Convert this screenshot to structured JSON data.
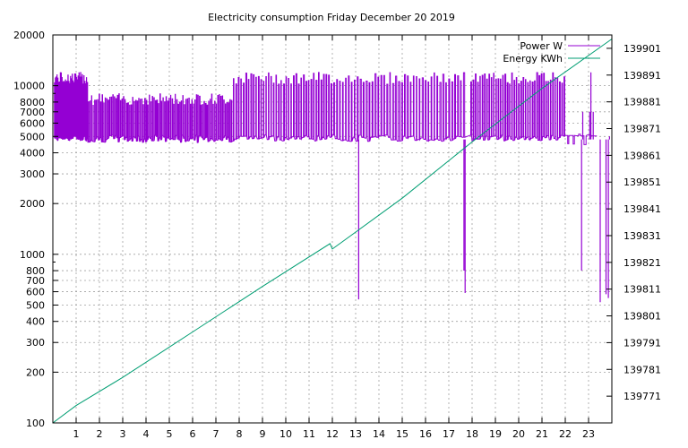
{
  "chart_data": {
    "type": "line",
    "title": "Electricity consumption Friday December 20 2019",
    "xlabel": "",
    "ylabel": "",
    "grid": true,
    "legend_position": "top-right",
    "x_range": [
      0,
      24
    ],
    "x_ticks": [
      1,
      2,
      3,
      4,
      5,
      6,
      7,
      8,
      9,
      10,
      11,
      12,
      13,
      14,
      15,
      16,
      17,
      18,
      19,
      20,
      21,
      22,
      23
    ],
    "y_axis": {
      "scale": "log",
      "range": [
        100,
        20000
      ],
      "ticks": [
        100,
        200,
        300,
        400,
        500,
        600,
        700,
        800,
        1000,
        2000,
        3000,
        4000,
        5000,
        6000,
        7000,
        8000,
        10000,
        20000
      ]
    },
    "y2_axis": {
      "scale": "linear",
      "range": [
        139761,
        139906
      ],
      "ticks": [
        139771,
        139781,
        139791,
        139801,
        139811,
        139821,
        139831,
        139841,
        139851,
        139861,
        139871,
        139881,
        139891,
        139901
      ]
    },
    "series": [
      {
        "name": "Power W",
        "axis": "y",
        "color": "#9400d3",
        "baseline": 4800,
        "peak": 12000,
        "segments": [
          {
            "from": 0.05,
            "to": 1.5,
            "low": 4700,
            "high": 12000,
            "count": 40
          },
          {
            "from": 1.5,
            "to": 7.7,
            "low": 4600,
            "high": 9000,
            "count": 95
          },
          {
            "from": 7.7,
            "to": 12.0,
            "low": 4700,
            "high": 12000,
            "count": 40
          },
          {
            "from": 12.0,
            "to": 17.7,
            "low": 4650,
            "high": 12000,
            "count": 45
          },
          {
            "from": 17.9,
            "to": 22.0,
            "low": 4700,
            "high": 12000,
            "count": 42
          },
          {
            "from": 22.0,
            "to": 23.4,
            "low": 5000,
            "high": 5200,
            "count": 6
          }
        ],
        "spikes": [
          {
            "x": 13.13,
            "value": 540
          },
          {
            "x": 17.65,
            "value": 800
          },
          {
            "x": 17.7,
            "value": 590
          },
          {
            "x": 22.7,
            "value": 800
          },
          {
            "x": 22.75,
            "value": 7000
          },
          {
            "x": 23.05,
            "value": 7000
          },
          {
            "x": 23.1,
            "value": 12000
          },
          {
            "x": 23.2,
            "value": 7000
          },
          {
            "x": 23.5,
            "value": 520
          },
          {
            "x": 23.68,
            "value": 4800
          },
          {
            "x": 23.75,
            "value": 580
          },
          {
            "x": 23.85,
            "value": 550
          },
          {
            "x": 23.9,
            "value": 5000
          }
        ]
      },
      {
        "name": "Energy KWh",
        "axis": "y2",
        "color": "#009e73",
        "points": [
          {
            "x": 0.0,
            "y": 139761.0
          },
          {
            "x": 1.0,
            "y": 139767.5
          },
          {
            "x": 3.0,
            "y": 139778.0
          },
          {
            "x": 6.0,
            "y": 139795.0
          },
          {
            "x": 9.0,
            "y": 139812.0
          },
          {
            "x": 11.9,
            "y": 139828.0
          },
          {
            "x": 12.0,
            "y": 139826.0
          },
          {
            "x": 12.4,
            "y": 139828.5
          },
          {
            "x": 15.0,
            "y": 139845.0
          },
          {
            "x": 18.0,
            "y": 139866.0
          },
          {
            "x": 21.0,
            "y": 139886.0
          },
          {
            "x": 24.0,
            "y": 139904.5
          }
        ]
      }
    ]
  }
}
